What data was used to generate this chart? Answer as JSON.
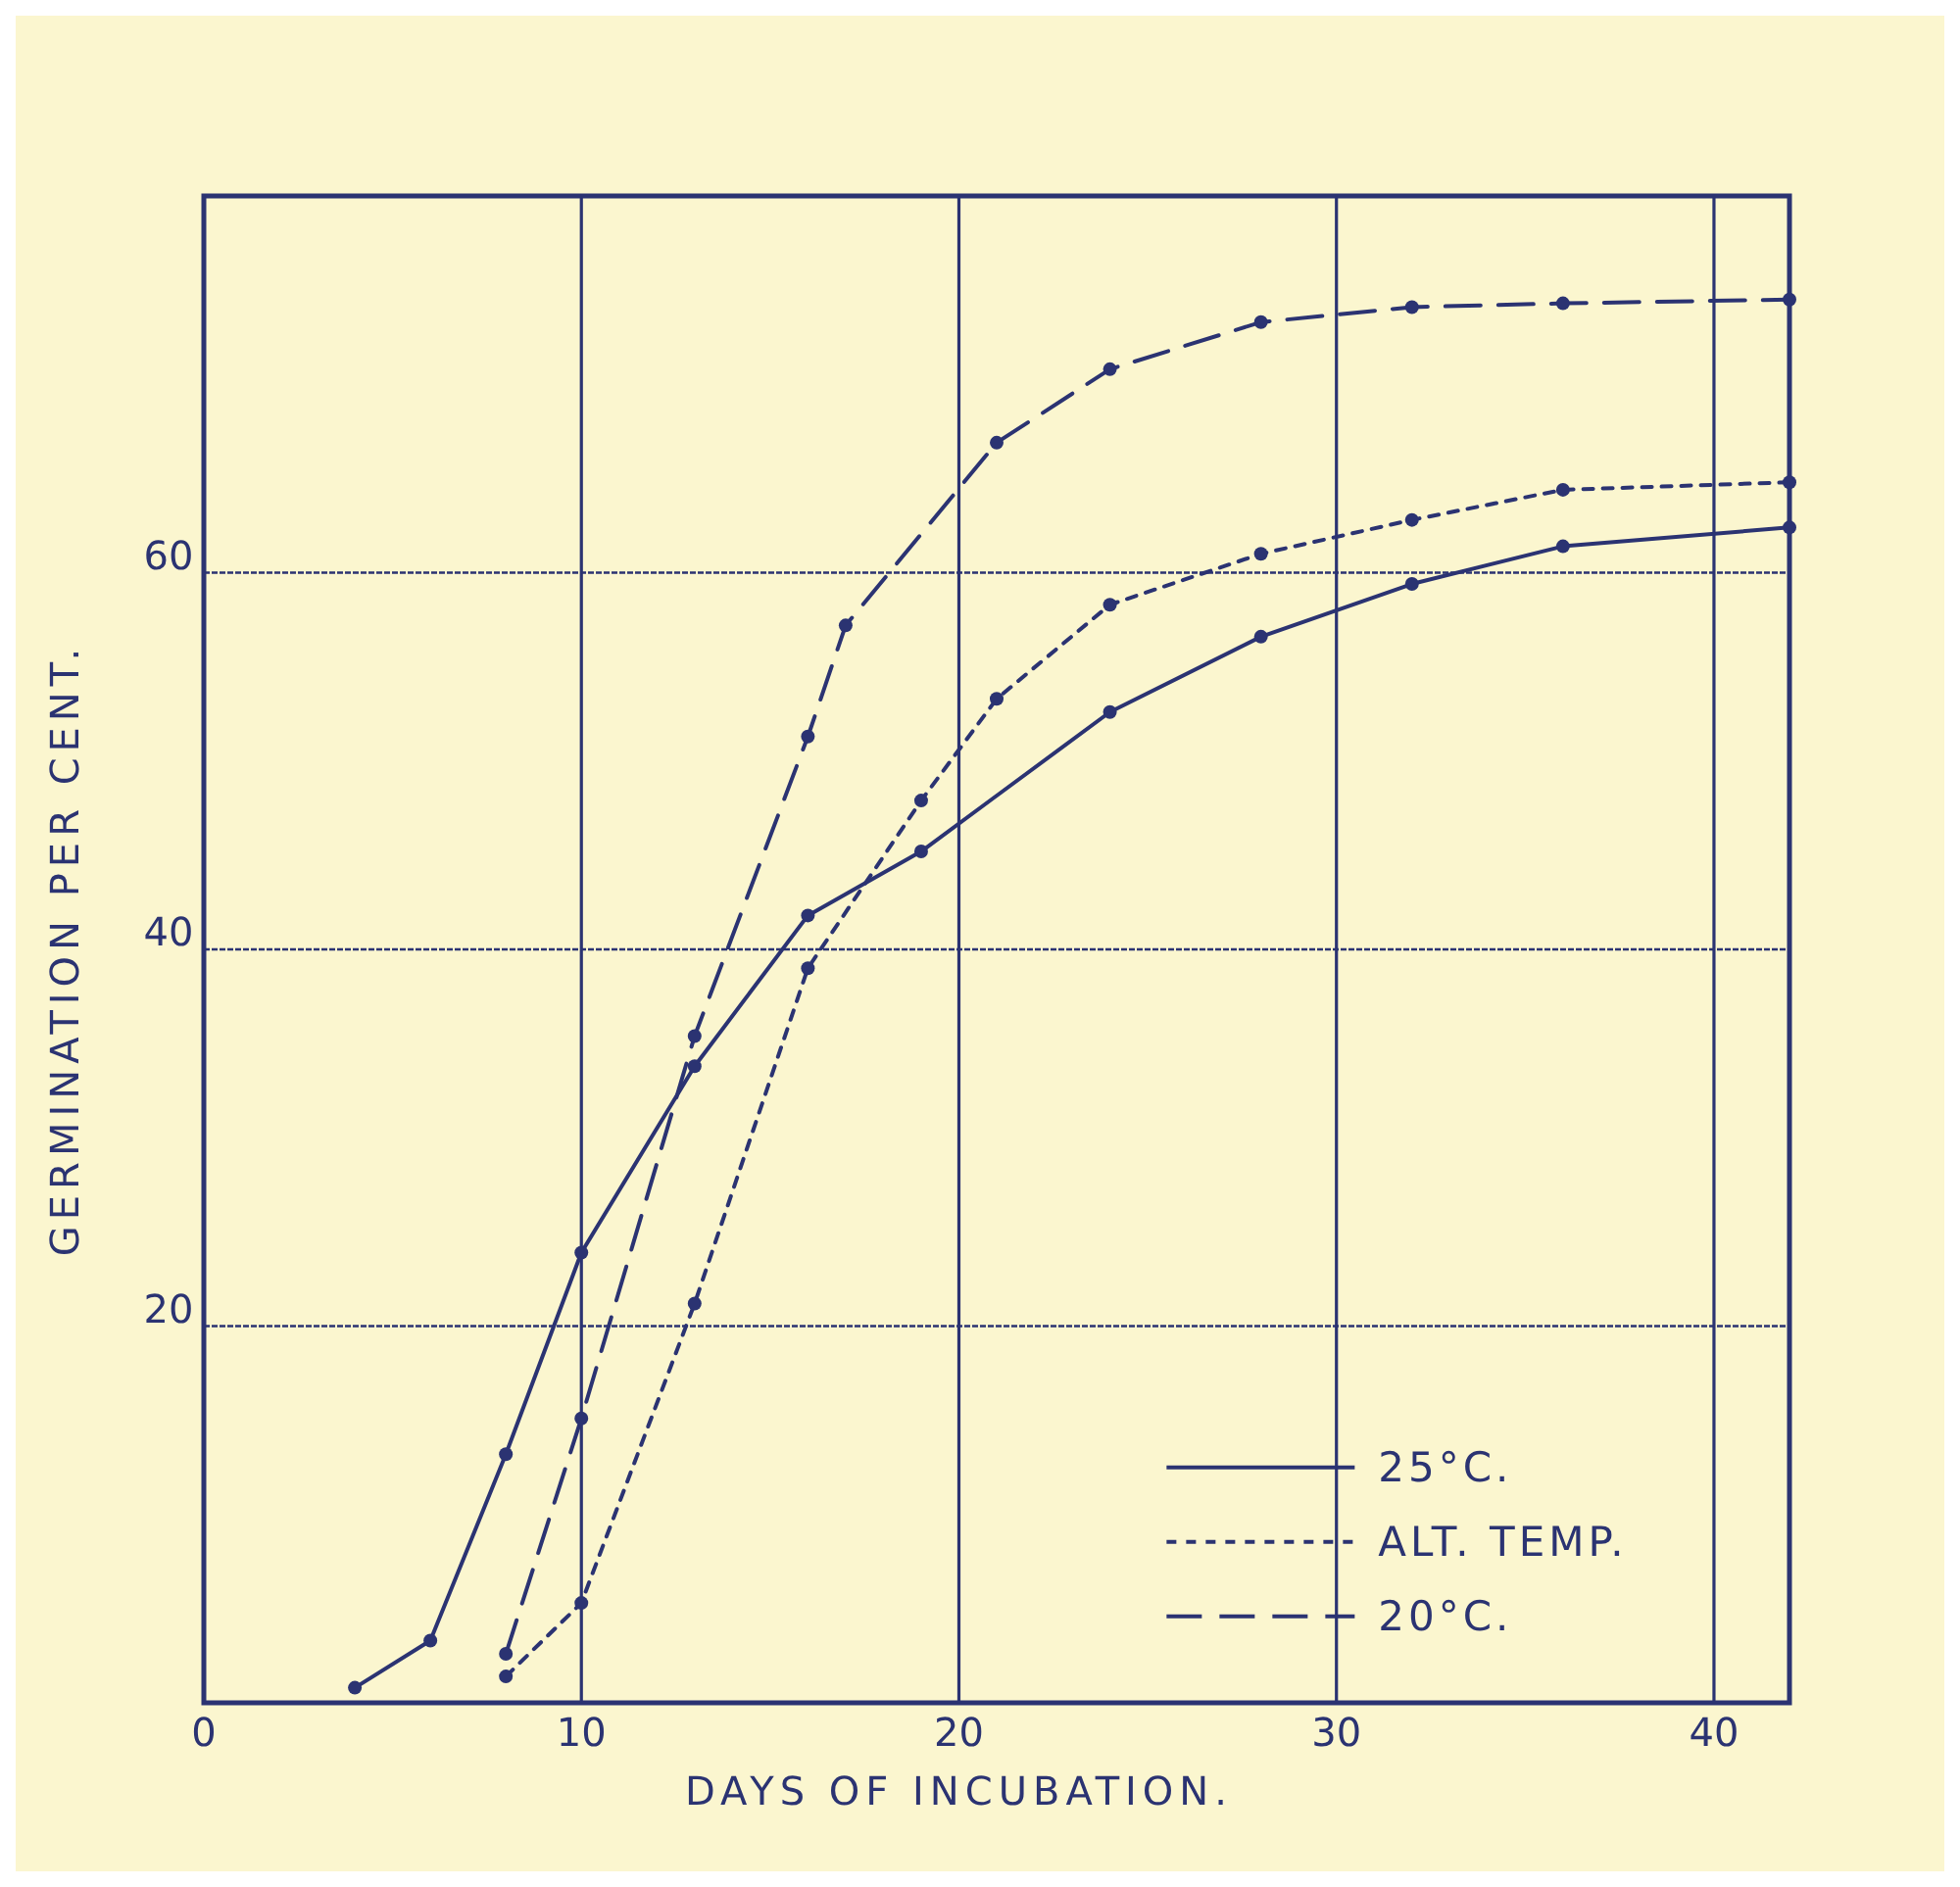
{
  "chart_data": {
    "type": "line",
    "xlabel": "DAYS OF INCUBATION.",
    "ylabel": "GERMINATION PER CENT.",
    "xlim": [
      0,
      42
    ],
    "xticks": [
      0,
      10,
      20,
      30,
      40
    ],
    "ylim": [
      0,
      80
    ],
    "yticks": [
      20,
      40,
      60
    ],
    "grid": true,
    "legend": "bottom right",
    "marker": "circle",
    "series": [
      {
        "name": "25°C.",
        "color": "#2b3372",
        "line_style": "solid",
        "x": [
          4,
          6,
          8,
          10,
          13,
          16,
          19,
          24,
          28,
          32,
          36,
          42
        ],
        "values": [
          0.8,
          3.3,
          13.2,
          23.9,
          33.8,
          41.8,
          45.2,
          52.6,
          56.6,
          59.4,
          61.4,
          62.4
        ]
      },
      {
        "name": "ALT. TEMP.",
        "color": "#2b3372",
        "line_style": "dotted",
        "x": [
          8,
          10,
          13,
          16,
          19,
          21,
          24,
          28,
          32,
          36,
          42
        ],
        "values": [
          1.4,
          5.3,
          21.2,
          39.0,
          47.9,
          53.3,
          58.3,
          61.0,
          62.8,
          64.4,
          64.8
        ]
      },
      {
        "name": "20°C.",
        "color": "#2b3372",
        "line_style": "dashed",
        "x": [
          8,
          10,
          13,
          16,
          17,
          21,
          24,
          28,
          32,
          36,
          42
        ],
        "values": [
          2.6,
          15.1,
          35.4,
          51.3,
          57.2,
          66.9,
          70.8,
          73.3,
          74.1,
          74.3,
          74.5
        ]
      }
    ]
  }
}
